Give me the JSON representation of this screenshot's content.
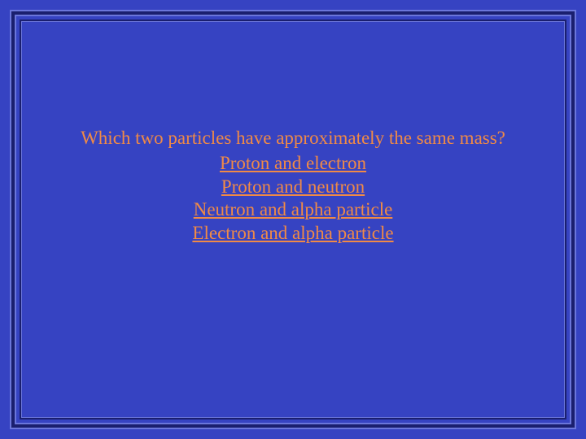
{
  "slide": {
    "background_color": "#3643c2",
    "frame_dark": "#1a1f6e",
    "frame_light": "#6b76da",
    "text_color": "#f08a46",
    "font_family": "Times New Roman",
    "question_fontsize": 23,
    "answer_fontsize": 23,
    "question": "Which two particles have approximately the same mass?",
    "answers": [
      "Proton and electron",
      "Proton and neutron",
      "Neutron and alpha particle",
      "Electron and alpha particle"
    ]
  }
}
